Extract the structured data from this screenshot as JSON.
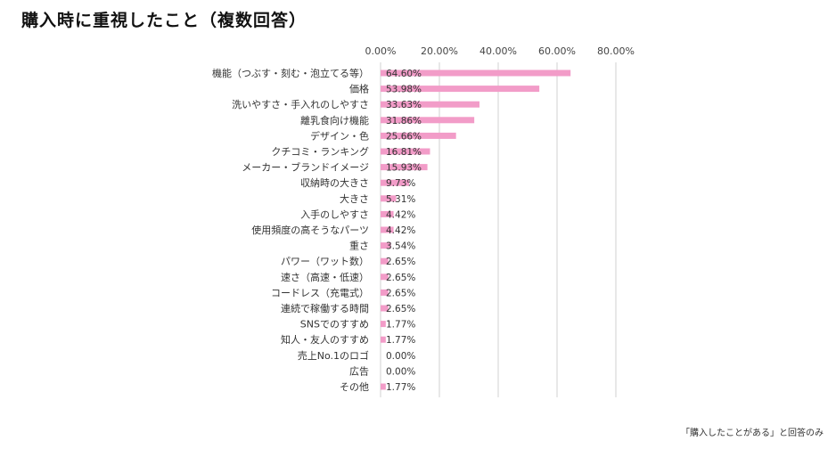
{
  "title": "購入時に重視したこと（複数回答）",
  "footnote": "「購入したことがある」と回答のみ",
  "chart_data": {
    "type": "bar",
    "orientation": "horizontal",
    "title": "購入時に重視したこと（複数回答）",
    "xlim": [
      0,
      80
    ],
    "x_ticks": [
      "0.00%",
      "20.00%",
      "40.00%",
      "60.00%",
      "80.00%"
    ],
    "grid": true,
    "bar_color": "#f29cc8",
    "categories": [
      "機能（つぶす・刻む・泡立てる等）",
      "価格",
      "洗いやすさ・手入れのしやすさ",
      "離乳食向け機能",
      "デザイン・色",
      "クチコミ・ランキング",
      "メーカー・ブランドイメージ",
      "収納時の大きさ",
      "大きさ",
      "入手のしやすさ",
      "使用頻度の高そうなパーツ",
      "重さ",
      "パワー（ワット数）",
      "速さ（高速・低速）",
      "コードレス（充電式）",
      "連続で稼働する時間",
      "SNSでのすすめ",
      "知人・友人のすすめ",
      "売上No.1のロゴ",
      "広告",
      "その他"
    ],
    "values": [
      64.6,
      53.98,
      33.63,
      31.86,
      25.66,
      16.81,
      15.93,
      9.73,
      5.31,
      4.42,
      4.42,
      3.54,
      2.65,
      2.65,
      2.65,
      2.65,
      1.77,
      1.77,
      0.0,
      0.0,
      1.77
    ],
    "labels": [
      "64.60%",
      "53.98%",
      "33.63%",
      "31.86%",
      "25.66%",
      "16.81%",
      "15.93%",
      "9.73%",
      "5.31%",
      "4.42%",
      "4.42%",
      "3.54%",
      "2.65%",
      "2.65%",
      "2.65%",
      "2.65%",
      "1.77%",
      "1.77%",
      "0.00%",
      "0.00%",
      "1.77%"
    ]
  }
}
